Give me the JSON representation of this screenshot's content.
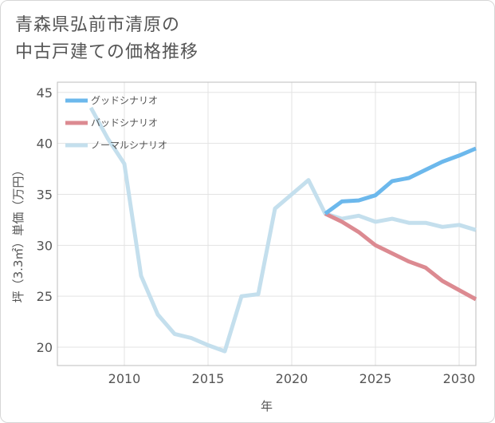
{
  "title_lines": [
    "青森県弘前市清原の",
    "中古戸建ての価格推移"
  ],
  "chart_data": {
    "type": "line",
    "xlabel": "年",
    "ylabel": "坪（3.3㎡）単価（万円）",
    "xlim": [
      2006.0,
      2031.0
    ],
    "ylim": [
      18.2,
      46.0
    ],
    "xticks": [
      2010,
      2015,
      2020,
      2025,
      2030
    ],
    "yticks": [
      20,
      25,
      30,
      35,
      40,
      45
    ],
    "grid": true,
    "legend_position": "top-left",
    "series": [
      {
        "name": "グッドシナリオ",
        "color": "#6cb8ec",
        "x": [
          2022,
          2023,
          2024,
          2025,
          2026,
          2027,
          2028,
          2029,
          2030,
          2031
        ],
        "y": [
          33.1,
          34.3,
          34.4,
          34.9,
          36.3,
          36.6,
          37.4,
          38.2,
          38.8,
          39.5
        ]
      },
      {
        "name": "バッドシナリオ",
        "color": "#dc8a91",
        "x": [
          2022,
          2023,
          2024,
          2025,
          2026,
          2027,
          2028,
          2029,
          2030,
          2031
        ],
        "y": [
          33.1,
          32.3,
          31.3,
          30.0,
          29.2,
          28.4,
          27.8,
          26.5,
          25.6,
          24.7
        ]
      },
      {
        "name": "ノーマルシナリオ",
        "color": "#c4dfed",
        "x": [
          2008,
          2009,
          2010,
          2011,
          2012,
          2013,
          2014,
          2015,
          2016,
          2017,
          2018,
          2019,
          2020,
          2021,
          2022,
          2023,
          2024,
          2025,
          2026,
          2027,
          2028,
          2029,
          2030,
          2031
        ],
        "y": [
          43.5,
          40.5,
          38.0,
          27.0,
          23.2,
          21.3,
          20.9,
          20.2,
          19.6,
          25.0,
          25.2,
          33.6,
          35.0,
          36.4,
          33.1,
          32.6,
          32.9,
          32.3,
          32.6,
          32.2,
          32.2,
          31.8,
          32.0,
          31.5
        ]
      }
    ]
  }
}
